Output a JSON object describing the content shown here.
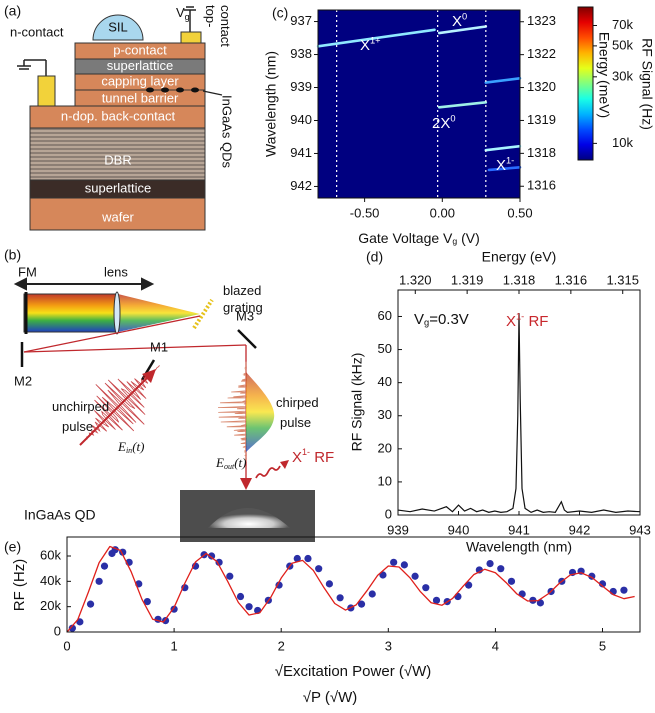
{
  "panels": {
    "a": {
      "label": "(a)",
      "n_contact": "n-contact",
      "sil": "SIL",
      "vg": {
        "main": "V",
        "sub": "g"
      },
      "top_contact": [
        "top-",
        "contact"
      ],
      "p_contact": "p-contact",
      "superlattice_top": "superlattice",
      "capping": "capping layer",
      "tunnel": "tunnel barrier",
      "back_contact": "n-dop. back-contact",
      "dbr": "DBR",
      "superlattice_bottom": "superlattice",
      "wafer": "wafer",
      "qds": "InGaAs QDs"
    },
    "b": {
      "label": "(b)",
      "fm": "FM",
      "lens": "lens",
      "grating": [
        "blazed",
        "grating"
      ],
      "m1": "M1",
      "m2": "M2",
      "m3": "M3",
      "unchirped": [
        "unchirped",
        "pulse"
      ],
      "chirped": [
        "chirped",
        "pulse"
      ],
      "e_in": {
        "main": "E",
        "sub": "in",
        "rest": "(t)"
      },
      "e_out": {
        "main": "E",
        "sub": "out",
        "rest": "(t)"
      },
      "rf": {
        "main": "X",
        "sup": "1-",
        "rest": " RF"
      },
      "qd": "InGaAs QD"
    }
  },
  "chart_data": [
    {
      "type": "heatmap",
      "label": "(c)",
      "xlabel": {
        "main": "Gate Voltage V",
        "sub": "g",
        "rest": " (V)"
      },
      "ylabel": "Wavelength (nm)",
      "y2label": "Energy (meV)",
      "xlim": [
        -0.8,
        0.5
      ],
      "xticks": [
        {
          "value": -0.5,
          "label": "-0.50"
        },
        {
          "value": 0,
          "label": "0.00"
        },
        {
          "value": 0.5,
          "label": "0.50"
        }
      ],
      "ylim": [
        942.35,
        936.65
      ],
      "yticks": [
        937,
        938,
        939,
        940,
        941,
        942
      ],
      "y2lim": [
        1315.7,
        1323.7
      ],
      "y2ticks": [
        {
          "value": 1323.2,
          "label": "1323"
        },
        {
          "value": 1321.8,
          "label": "1322"
        },
        {
          "value": 1320.4,
          "label": "1320"
        },
        {
          "value": 1319.0,
          "label": "1319"
        },
        {
          "value": 1317.6,
          "label": "1318"
        },
        {
          "value": 1316.2,
          "label": "1316"
        }
      ],
      "lines": [
        {
          "x": [
            -0.8,
            -0.05
          ],
          "y": [
            937.75,
            937.25
          ],
          "color": "#8fe8ff"
        },
        {
          "x": [
            -0.02,
            0.28
          ],
          "y": [
            937.35,
            937.15
          ],
          "color": "#b8f2ff"
        },
        {
          "x": [
            -0.02,
            0.28
          ],
          "y": [
            939.6,
            939.45
          ],
          "color": "#9ff0e8"
        },
        {
          "x": [
            0.28,
            0.5
          ],
          "y": [
            940.9,
            940.78
          ],
          "color": "#a8f4ff"
        },
        {
          "x": [
            0.28,
            0.5
          ],
          "y": [
            938.85,
            938.72
          ],
          "color": "#3aa0ff"
        },
        {
          "x": [
            0.3,
            0.5
          ],
          "y": [
            941.5,
            941.42
          ],
          "color": "#2a6cff"
        }
      ],
      "vlines": [
        -0.68,
        -0.03,
        0.28
      ],
      "annotations": [
        {
          "main": "X",
          "sup": "1+"
        },
        {
          "main": "X",
          "sup": "0"
        },
        {
          "main": "2X",
          "sup": "0"
        },
        {
          "main": "X",
          "sup": "1-"
        }
      ],
      "colorbar": {
        "label": "RF Signal (Hz)",
        "scale": "log",
        "colormap": "jet",
        "lim": [
          7600,
          95000
        ],
        "ticks": [
          {
            "value": 10000,
            "label": "10k"
          },
          {
            "value": 30000,
            "label": "30k"
          },
          {
            "value": 50000,
            "label": "50k"
          },
          {
            "value": 70000,
            "label": "70k"
          }
        ]
      }
    },
    {
      "type": "line",
      "label": "(d)",
      "xlabel": "Wavelength (nm)",
      "x2label": "Energy (eV)",
      "ylabel": "RF Signal (kHz)",
      "xlim": [
        939,
        943
      ],
      "xticks": [
        939,
        940,
        941,
        942,
        943
      ],
      "x2lim": [
        1.3204,
        1.3148
      ],
      "x2ticks": [
        {
          "value": 1.32,
          "label": "1.320"
        },
        {
          "value": 1.3188,
          "label": "1.319"
        },
        {
          "value": 1.3176,
          "label": "1.318"
        },
        {
          "value": 1.3164,
          "label": "1.316"
        },
        {
          "value": 1.3152,
          "label": "1.315"
        }
      ],
      "ylim": [
        0,
        68
      ],
      "yticks": [
        0,
        10,
        20,
        30,
        40,
        50,
        60
      ],
      "annotations": [
        {
          "main": "V",
          "sub": "g",
          "rest": "=0.3V"
        },
        {
          "main": "X",
          "sup": "1-",
          "rest": " RF",
          "color": "#c8282d"
        }
      ],
      "series": [
        {
          "color": "#111111",
          "x": [
            939.0,
            939.2,
            939.4,
            939.6,
            939.8,
            939.9,
            940.0,
            940.1,
            940.2,
            940.3,
            940.4,
            940.5,
            940.6,
            940.7,
            940.8,
            940.9,
            940.95,
            940.98,
            941.0,
            941.02,
            941.05,
            941.1,
            941.2,
            941.3,
            941.4,
            941.5,
            941.6,
            941.7,
            941.75,
            941.8,
            942.0,
            942.2,
            942.4,
            942.6,
            942.8,
            943.0
          ],
          "values": [
            1.5,
            1.0,
            1.8,
            1.2,
            2.5,
            1.0,
            3.0,
            1.2,
            2.0,
            1.0,
            1.5,
            0.8,
            1.2,
            0.8,
            1.0,
            2.0,
            8,
            30,
            61,
            35,
            8,
            2.0,
            0.8,
            1.5,
            0.8,
            1.0,
            0.8,
            4.0,
            1.5,
            0.8,
            1.2,
            0.8,
            1.5,
            0.8,
            1.2,
            1.0
          ]
        }
      ]
    },
    {
      "type": "scatter",
      "label": "(e)",
      "xlabel": "√Excitation Power (√W)",
      "caption": "√P (√W)",
      "ylabel": "RF (Hz)",
      "xlim": [
        0,
        5.35
      ],
      "xticks": [
        0,
        1,
        2,
        3,
        4,
        5
      ],
      "ylim": [
        0,
        75000
      ],
      "yticks": [
        0,
        {
          "value": 20000,
          "label": "20k"
        },
        {
          "value": 40000,
          "label": "40k"
        },
        {
          "value": 60000,
          "label": "60k"
        }
      ],
      "series": [
        {
          "type": "scatter",
          "color": "#2a2fa6",
          "x": [
            0.05,
            0.12,
            0.22,
            0.3,
            0.35,
            0.42,
            0.45,
            0.52,
            0.58,
            0.67,
            0.75,
            0.85,
            0.92,
            1.0,
            1.1,
            1.2,
            1.28,
            1.35,
            1.42,
            1.52,
            1.62,
            1.7,
            1.78,
            1.88,
            1.98,
            2.08,
            2.15,
            2.25,
            2.35,
            2.45,
            2.55,
            2.65,
            2.75,
            2.85,
            2.95,
            3.05,
            3.15,
            3.25,
            3.35,
            3.45,
            3.55,
            3.65,
            3.75,
            3.85,
            3.95,
            4.05,
            4.15,
            4.25,
            4.35,
            4.42,
            4.52,
            4.62,
            4.72,
            4.8,
            4.9,
            5.0,
            5.1,
            5.2
          ],
          "values": [
            3000,
            8000,
            22000,
            40000,
            52000,
            62000,
            65000,
            63000,
            55000,
            38000,
            24000,
            10000,
            9000,
            18000,
            35000,
            52000,
            61000,
            60000,
            55000,
            44000,
            28000,
            20000,
            17000,
            25000,
            37000,
            52000,
            58000,
            58000,
            50000,
            38000,
            27000,
            19000,
            22000,
            30000,
            45000,
            55000,
            53000,
            44000,
            35000,
            25000,
            24000,
            28000,
            37000,
            49000,
            54000,
            50000,
            40000,
            30000,
            25000,
            23000,
            32000,
            40000,
            47000,
            48000,
            44000,
            38000,
            32000,
            33000
          ]
        },
        {
          "type": "line",
          "color": "#e0201b",
          "x": [
            0,
            0.1,
            0.2,
            0.3,
            0.4,
            0.5,
            0.6,
            0.7,
            0.8,
            0.9,
            1.0,
            1.1,
            1.2,
            1.3,
            1.4,
            1.5,
            1.6,
            1.7,
            1.8,
            1.9,
            2.0,
            2.1,
            2.2,
            2.3,
            2.4,
            2.5,
            2.6,
            2.7,
            2.8,
            2.9,
            3.0,
            3.1,
            3.2,
            3.3,
            3.4,
            3.5,
            3.6,
            3.7,
            3.8,
            3.9,
            4.0,
            4.1,
            4.2,
            4.3,
            4.4,
            4.5,
            4.6,
            4.7,
            4.8,
            4.9,
            5.0,
            5.1,
            5.2,
            5.3
          ],
          "values": [
            0,
            9700,
            31600,
            54800,
            67500,
            64400,
            47400,
            25800,
            10100,
            7900,
            19400,
            38500,
            55400,
            62000,
            55600,
            40000,
            23300,
            13400,
            15200,
            27000,
            42600,
            54300,
            56500,
            48600,
            34900,
            22500,
            17300,
            21400,
            32500,
            44700,
            52100,
            51300,
            43000,
            31800,
            23100,
            21100,
            26500,
            36300,
            45400,
            49500,
            46800,
            39000,
            30100,
            24500,
            24800,
            30500,
            38700,
            45100,
            46800,
            43100,
            36200,
            29500,
            26300,
            28000
          ]
        }
      ]
    }
  ]
}
